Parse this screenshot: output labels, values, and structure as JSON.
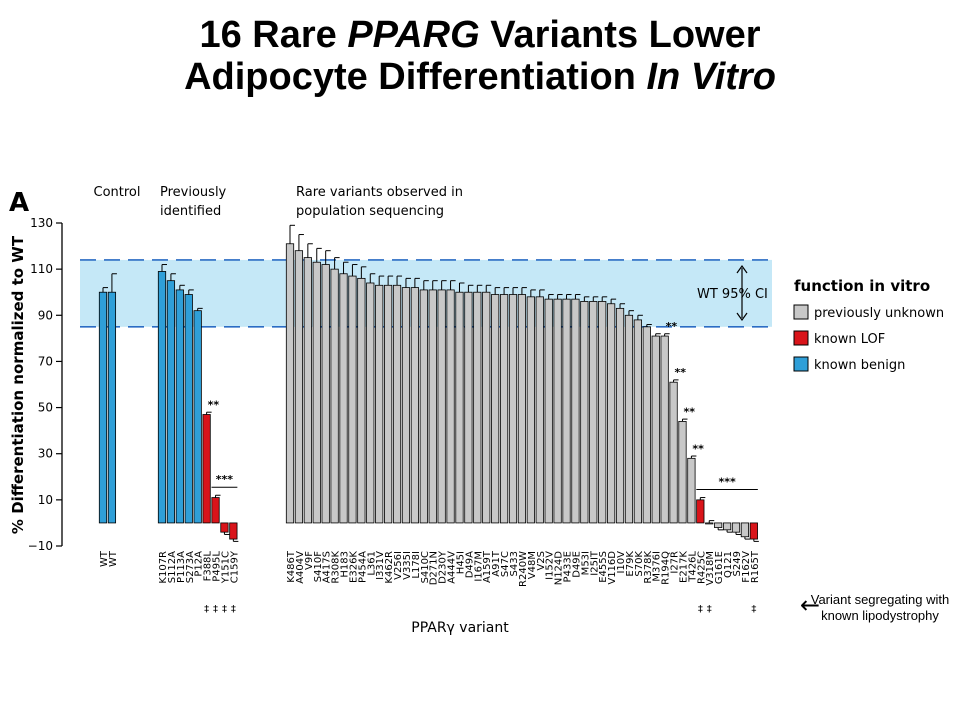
{
  "title": {
    "line1_a": "16 Rare ",
    "line1_em": "PPARG",
    "line1_b": " Variants Lower",
    "line2_a": "Adipocyte Differentiation ",
    "line2_em": "In Vitro"
  },
  "panel_label": "A",
  "group_labels": {
    "control": "Control",
    "previous_1": "Previously",
    "previous_2": "identified",
    "rare_1": "Rare variants observed in",
    "rare_2": "population sequencing"
  },
  "ci_label": "WT 95% CI",
  "colors": {
    "unknown": "#c8c8c8",
    "lof": "#d9141a",
    "benign": "#2f9fd8",
    "ci_band": "#c5e8f7",
    "ci_line": "#2b6cc4"
  },
  "note": {
    "arrow": "←",
    "text": "Variant segregating with known lipodystrophy"
  },
  "chart_data": {
    "type": "bar",
    "xlabel": "PPARγ variant",
    "ylabel": "% Differentiation normalized to WT",
    "ylim": [
      -10,
      130
    ],
    "yticks": [
      -10,
      10,
      30,
      50,
      70,
      90,
      110,
      130
    ],
    "ci_band": [
      85,
      114
    ],
    "legend": {
      "title": "function in vitro",
      "position": "right",
      "items": [
        {
          "label": "previously unknown",
          "key": "unknown"
        },
        {
          "label": "known LOF",
          "key": "lof"
        },
        {
          "label": "known benign",
          "key": "benign"
        }
      ]
    },
    "groups": [
      {
        "name": "Control",
        "bars": [
          {
            "label": "WT",
            "value": 100,
            "err": 2,
            "cls": "benign"
          },
          {
            "label": "WT",
            "value": 100,
            "err": 8,
            "cls": "benign"
          }
        ]
      },
      {
        "name": "Previously identified",
        "bars": [
          {
            "label": "K107R",
            "value": 109,
            "err": 3,
            "cls": "benign"
          },
          {
            "label": "S112A",
            "value": 105,
            "err": 3,
            "cls": "benign"
          },
          {
            "label": "P113A",
            "value": 101,
            "err": 2,
            "cls": "benign"
          },
          {
            "label": "S273A",
            "value": 99,
            "err": 2,
            "cls": "benign"
          },
          {
            "label": "P12A",
            "value": 92,
            "err": 1,
            "cls": "benign"
          },
          {
            "label": "F388L",
            "value": 47,
            "err": 1,
            "cls": "lof",
            "dagger": "‡"
          },
          {
            "label": "P495L",
            "value": 11,
            "err": 1,
            "cls": "lof",
            "dagger": "‡"
          },
          {
            "label": "Y151C",
            "value": -4,
            "err": 1,
            "cls": "lof",
            "dagger": "‡"
          },
          {
            "label": "C159Y",
            "value": -7,
            "err": 1,
            "cls": "lof",
            "dagger": "‡"
          }
        ],
        "annotations": [
          {
            "text": "**",
            "at": 5
          },
          {
            "text": "***",
            "from": 6,
            "to": 8
          }
        ]
      },
      {
        "name": "Rare variants observed in population sequencing",
        "bars": [
          {
            "label": "K486T",
            "value": 121,
            "err": 8,
            "cls": "unknown"
          },
          {
            "label": "A404V",
            "value": 118,
            "err": 7,
            "cls": "unknown"
          },
          {
            "label": "V9F",
            "value": 115,
            "err": 6,
            "cls": "unknown"
          },
          {
            "label": "S410F",
            "value": 113,
            "err": 6,
            "cls": "unknown"
          },
          {
            "label": "A417S",
            "value": 112,
            "err": 6,
            "cls": "unknown"
          },
          {
            "label": "R308K",
            "value": 110,
            "err": 5,
            "cls": "unknown"
          },
          {
            "label": "H183",
            "value": 108,
            "err": 5,
            "cls": "unknown"
          },
          {
            "label": "E326K",
            "value": 107,
            "err": 5,
            "cls": "unknown"
          },
          {
            "label": "P454A",
            "value": 106,
            "err": 5,
            "cls": "unknown"
          },
          {
            "label": "L361",
            "value": 104,
            "err": 4,
            "cls": "unknown"
          },
          {
            "label": "I331V",
            "value": 103,
            "err": 4,
            "cls": "unknown"
          },
          {
            "label": "K462R",
            "value": 103,
            "err": 4,
            "cls": "unknown"
          },
          {
            "label": "V256I",
            "value": 103,
            "err": 4,
            "cls": "unknown"
          },
          {
            "label": "V335I",
            "value": 102,
            "err": 4,
            "cls": "unknown"
          },
          {
            "label": "L178I",
            "value": 102,
            "err": 4,
            "cls": "unknown"
          },
          {
            "label": "S410C",
            "value": 101,
            "err": 4,
            "cls": "unknown"
          },
          {
            "label": "D271N",
            "value": 101,
            "err": 4,
            "cls": "unknown"
          },
          {
            "label": "D230Y",
            "value": 101,
            "err": 4,
            "cls": "unknown"
          },
          {
            "label": "A444V",
            "value": 101,
            "err": 4,
            "cls": "unknown"
          },
          {
            "label": "H45I",
            "value": 100,
            "err": 4,
            "cls": "unknown"
          },
          {
            "label": "D49A",
            "value": 100,
            "err": 3,
            "cls": "unknown"
          },
          {
            "label": "I167M",
            "value": 100,
            "err": 3,
            "cls": "unknown"
          },
          {
            "label": "A159T",
            "value": 100,
            "err": 3,
            "cls": "unknown"
          },
          {
            "label": "A91T",
            "value": 99,
            "err": 3,
            "cls": "unknown"
          },
          {
            "label": "S47C",
            "value": 99,
            "err": 3,
            "cls": "unknown"
          },
          {
            "label": "S433",
            "value": 99,
            "err": 3,
            "cls": "unknown"
          },
          {
            "label": "R240W",
            "value": 99,
            "err": 3,
            "cls": "unknown"
          },
          {
            "label": "V48M",
            "value": 98,
            "err": 3,
            "cls": "unknown"
          },
          {
            "label": "V2S",
            "value": 98,
            "err": 3,
            "cls": "unknown"
          },
          {
            "label": "I152V",
            "value": 97,
            "err": 2,
            "cls": "unknown"
          },
          {
            "label": "N124D",
            "value": 97,
            "err": 2,
            "cls": "unknown"
          },
          {
            "label": "P433E",
            "value": 97,
            "err": 2,
            "cls": "unknown"
          },
          {
            "label": "D49E",
            "value": 97,
            "err": 2,
            "cls": "unknown"
          },
          {
            "label": "M53I",
            "value": 96,
            "err": 2,
            "cls": "unknown"
          },
          {
            "label": "I25IT",
            "value": 96,
            "err": 2,
            "cls": "unknown"
          },
          {
            "label": "E455S",
            "value": 96,
            "err": 2,
            "cls": "unknown"
          },
          {
            "label": "V116D",
            "value": 95,
            "err": 2,
            "cls": "unknown"
          },
          {
            "label": "I10V",
            "value": 93,
            "err": 2,
            "cls": "unknown"
          },
          {
            "label": "E79K",
            "value": 90,
            "err": 2,
            "cls": "unknown"
          },
          {
            "label": "S70K",
            "value": 88,
            "err": 2,
            "cls": "unknown"
          },
          {
            "label": "R378K",
            "value": 85,
            "err": 1,
            "cls": "unknown"
          },
          {
            "label": "M376I",
            "value": 81,
            "err": 1,
            "cls": "unknown"
          },
          {
            "label": "R194Q",
            "value": 81,
            "err": 1,
            "cls": "unknown"
          },
          {
            "label": "I27R",
            "value": 61,
            "err": 1,
            "cls": "unknown"
          },
          {
            "label": "E217K",
            "value": 44,
            "err": 1,
            "cls": "unknown"
          },
          {
            "label": "T426L",
            "value": 28,
            "err": 1,
            "cls": "unknown"
          },
          {
            "label": "R425C",
            "value": 10,
            "err": 1,
            "cls": "lof",
            "dagger": "‡"
          },
          {
            "label": "V318M",
            "value": 0,
            "err": 1,
            "cls": "unknown",
            "dagger": "‡"
          },
          {
            "label": "G161E",
            "value": -2,
            "err": 1,
            "cls": "unknown"
          },
          {
            "label": "Q121",
            "value": -3,
            "err": 1,
            "cls": "unknown"
          },
          {
            "label": "S249",
            "value": -4,
            "err": 1,
            "cls": "unknown"
          },
          {
            "label": "F162V",
            "value": -6,
            "err": 1,
            "cls": "unknown"
          },
          {
            "label": "R165T",
            "value": -7,
            "err": 1,
            "cls": "lof",
            "dagger": "‡"
          }
        ],
        "annotations": [
          {
            "text": "**",
            "at": 42
          },
          {
            "text": "**",
            "at": 43
          },
          {
            "text": "**",
            "at": 44
          },
          {
            "text": "**",
            "at": 45
          },
          {
            "text": "***",
            "from": 46,
            "to": 52
          }
        ]
      }
    ]
  }
}
